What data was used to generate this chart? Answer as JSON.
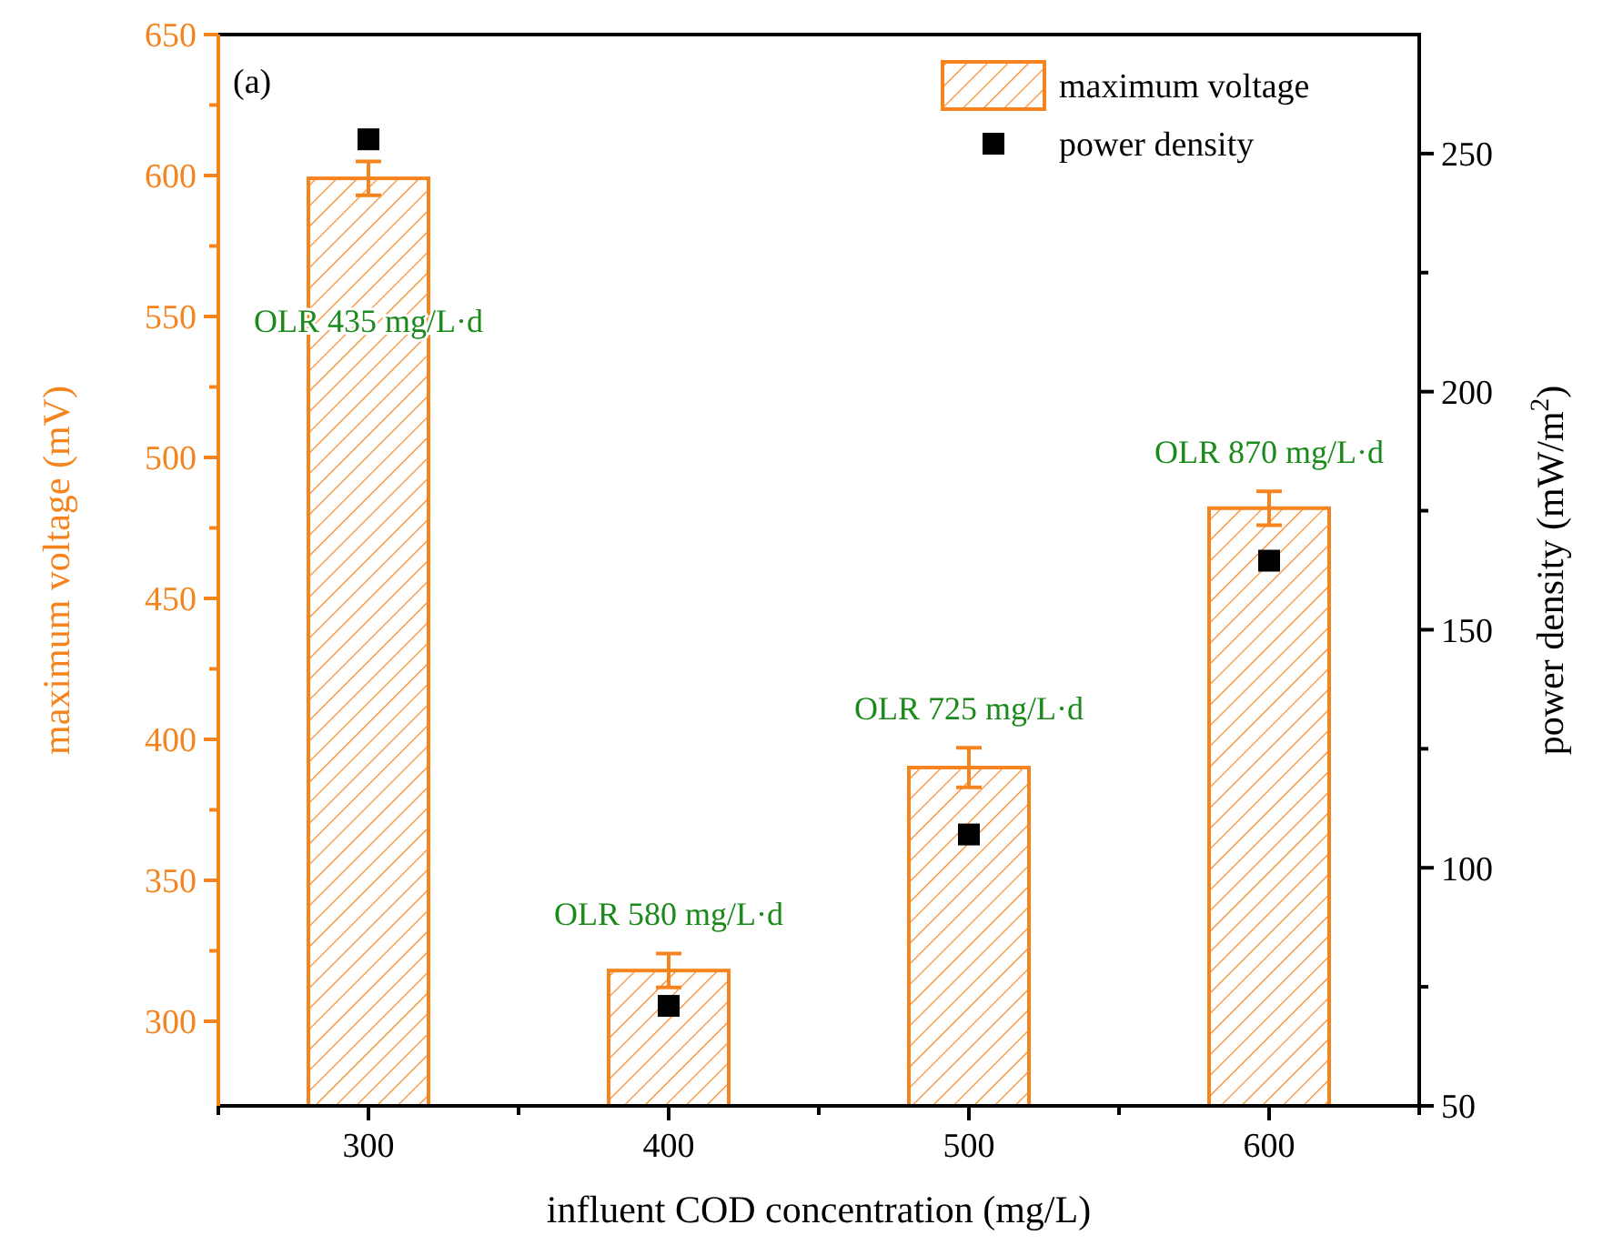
{
  "chart_data": {
    "type": "bar",
    "xlabel": "influent COD concentration (mg/L)",
    "ylabel": "maximum voltage (mV)",
    "y2label": "power density (mW/m$^{2}$)",
    "x": [
      300,
      400,
      500,
      600
    ],
    "series": [
      {
        "name": "maximum voltage",
        "color": "#f5841f",
        "values": [
          599,
          318,
          390,
          482
        ],
        "errors": [
          6,
          6,
          7,
          6
        ]
      },
      {
        "name": "power density",
        "type": "scatter",
        "axis": "y2",
        "color": "#000000",
        "marker": "square",
        "values": [
          253,
          71,
          107,
          164.5
        ]
      }
    ],
    "xlim": [
      250,
      650
    ],
    "xticks": [
      {
        "value": 250,
        "label": null
      },
      300,
      {
        "value": 350,
        "label": null
      },
      400,
      {
        "value": 450,
        "label": null
      },
      500,
      {
        "value": 550,
        "label": null
      },
      600,
      {
        "value": 650,
        "label": null
      }
    ],
    "ylim": [
      270,
      650
    ],
    "yticks": [
      300,
      350,
      400,
      450,
      500,
      550,
      600,
      650
    ],
    "y2lim": [
      50,
      275
    ],
    "y2ticks": [
      50,
      100,
      150,
      200,
      250
    ],
    "legend": "top right",
    "annotations": [
      "(a)",
      "OLR 435 mg/L·d",
      "OLR 580 mg/L·d",
      "OLR 725 mg/L·d",
      "OLR 870 mg/L·d"
    ]
  }
}
